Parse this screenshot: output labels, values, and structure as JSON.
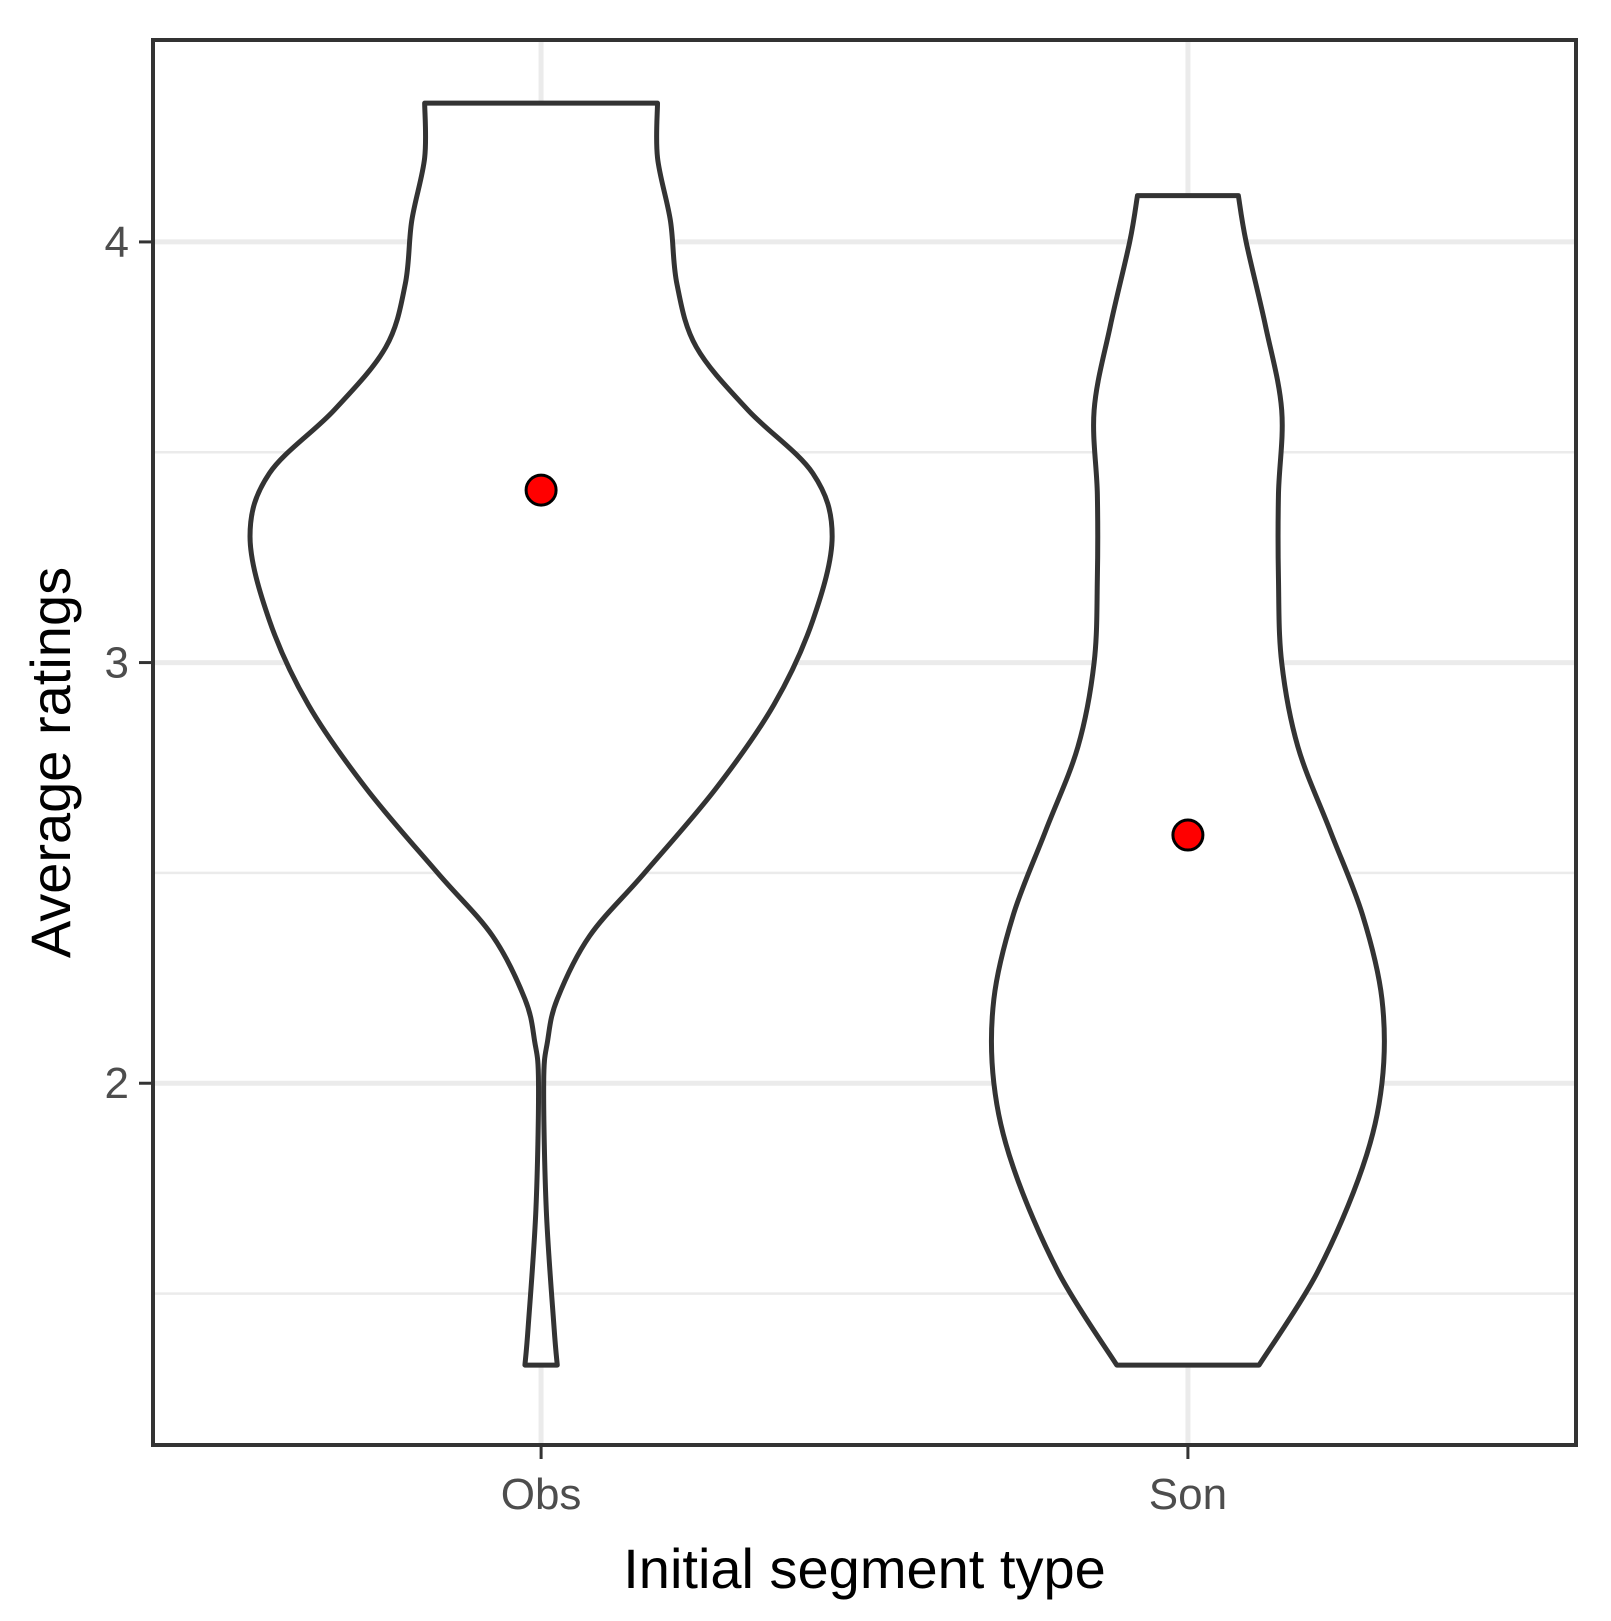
{
  "chart_data": {
    "type": "violin",
    "xlabel": "Initial segment type",
    "ylabel": "Average ratings",
    "categories": [
      "Obs",
      "Son"
    ],
    "ylim": [
      1.14,
      4.48
    ],
    "yticks": [
      2,
      3,
      4
    ],
    "grid": true,
    "colors": {
      "violin_outline": "#333333",
      "violin_fill": "#ffffff",
      "mean_point": "#ff0000",
      "grid": "#ebebeb",
      "panel_border": "#333333"
    },
    "series": [
      {
        "category": "Obs",
        "mean": 3.41,
        "min": 1.33,
        "max": 4.33,
        "density_profile": [
          {
            "y": 1.33,
            "half_width": 0.025
          },
          {
            "y": 1.42,
            "half_width": 0.02
          },
          {
            "y": 1.7,
            "half_width": 0.008
          },
          {
            "y": 2.0,
            "half_width": 0.004
          },
          {
            "y": 2.1,
            "half_width": 0.01
          },
          {
            "y": 2.2,
            "half_width": 0.025
          },
          {
            "y": 2.35,
            "half_width": 0.075
          },
          {
            "y": 2.5,
            "half_width": 0.16
          },
          {
            "y": 2.7,
            "half_width": 0.27
          },
          {
            "y": 2.9,
            "half_width": 0.36
          },
          {
            "y": 3.1,
            "half_width": 0.42
          },
          {
            "y": 3.3,
            "half_width": 0.45
          },
          {
            "y": 3.45,
            "half_width": 0.42
          },
          {
            "y": 3.6,
            "half_width": 0.32
          },
          {
            "y": 3.75,
            "half_width": 0.24
          },
          {
            "y": 3.9,
            "half_width": 0.21
          },
          {
            "y": 4.05,
            "half_width": 0.2
          },
          {
            "y": 4.2,
            "half_width": 0.18
          },
          {
            "y": 4.33,
            "half_width": 0.18
          }
        ]
      },
      {
        "category": "Son",
        "mean": 2.59,
        "min": 1.33,
        "max": 4.11,
        "density_profile": [
          {
            "y": 1.33,
            "half_width": 0.11
          },
          {
            "y": 1.55,
            "half_width": 0.2
          },
          {
            "y": 1.8,
            "half_width": 0.27
          },
          {
            "y": 2.0,
            "half_width": 0.3
          },
          {
            "y": 2.2,
            "half_width": 0.3
          },
          {
            "y": 2.4,
            "half_width": 0.27
          },
          {
            "y": 2.6,
            "half_width": 0.22
          },
          {
            "y": 2.8,
            "half_width": 0.17
          },
          {
            "y": 3.0,
            "half_width": 0.145
          },
          {
            "y": 3.2,
            "half_width": 0.14
          },
          {
            "y": 3.4,
            "half_width": 0.14
          },
          {
            "y": 3.6,
            "half_width": 0.145
          },
          {
            "y": 3.8,
            "half_width": 0.12
          },
          {
            "y": 4.0,
            "half_width": 0.09
          },
          {
            "y": 4.11,
            "half_width": 0.078
          }
        ]
      }
    ]
  }
}
